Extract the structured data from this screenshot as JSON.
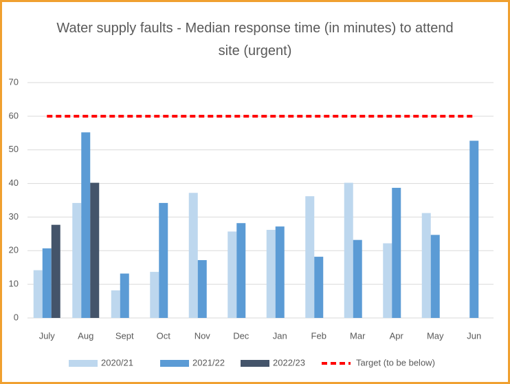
{
  "chart_data": {
    "type": "bar",
    "title": "Water supply faults - Median response time (in minutes) to attend site (urgent)",
    "categories": [
      "July",
      "Aug",
      "Sept",
      "Oct",
      "Nov",
      "Dec",
      "Jan",
      "Feb",
      "Mar",
      "Apr",
      "May",
      "Jun"
    ],
    "series": [
      {
        "name": "2020/21",
        "color": "#bdd7ee",
        "values": [
          14.2,
          34.2,
          8.2,
          13.7,
          37.2,
          25.7,
          26.2,
          36.2,
          40.2,
          22.2,
          31.2,
          null
        ]
      },
      {
        "name": "2021/22",
        "color": "#5b9bd5",
        "values": [
          20.7,
          55.2,
          13.2,
          34.2,
          17.2,
          28.2,
          27.2,
          18.2,
          23.2,
          38.7,
          24.7,
          52.7
        ]
      },
      {
        "name": "2022/23",
        "color": "#44546a",
        "values": [
          27.7,
          40.2,
          null,
          null,
          null,
          null,
          null,
          null,
          null,
          null,
          null,
          null
        ]
      },
      {
        "name": "Target (to be below)",
        "color": "#ff0000",
        "kind": "line",
        "dashed": true,
        "values": [
          60,
          60,
          60,
          60,
          60,
          60,
          60,
          60,
          60,
          60,
          60,
          60
        ]
      }
    ],
    "ylim": [
      0,
      70
    ],
    "yticks": [
      0,
      10,
      20,
      30,
      40,
      50,
      60,
      70
    ],
    "grid": true,
    "legend": "bottom"
  }
}
